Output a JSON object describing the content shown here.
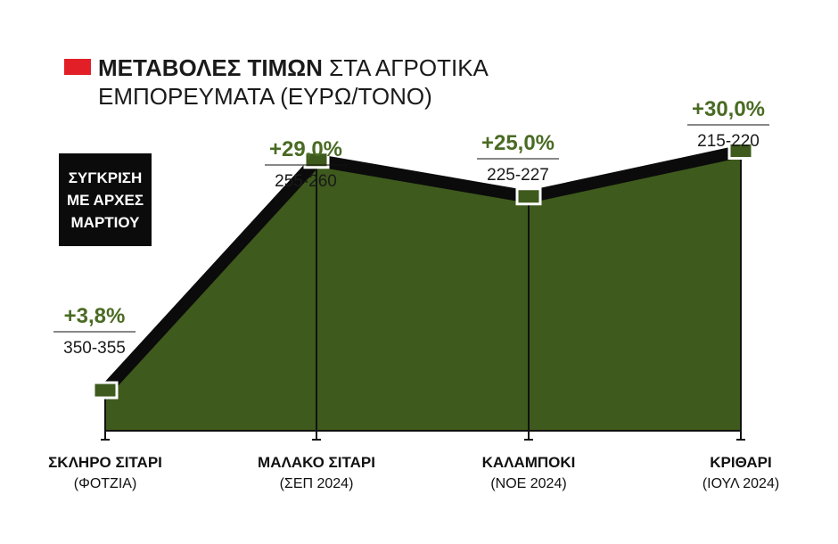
{
  "title": {
    "bold": "ΜΕΤΑΒΟΛΕΣ ΤΙΜΩΝ",
    "rest": " ΣΤΑ ΑΓΡΟΤΙΚΑ",
    "line2": "ΕΜΠΟΡΕΥΜΑΤΑ (ΕΥΡΩ/ΤΟΝΟ)"
  },
  "badge": [
    "ΣΥΓΚΡΙΣΗ",
    "ΜΕ ΑΡΧΕΣ",
    "ΜΑΡΤΙΟΥ"
  ],
  "colors": {
    "accent": "#e21f26",
    "fill": "#3e5a1c",
    "positive": "#4a6b23",
    "line": "#0b0b0b"
  },
  "chart_data": {
    "type": "area",
    "categories": [
      "ΣΚΛΗΡΟ ΣΙΤΑΡΙ",
      "ΜΑΛΑΚΟ ΣΙΤΑΡΙ",
      "ΚΑΛΑΜΠΟΚΙ",
      "ΚΡΙΘΑΡΙ"
    ],
    "subtitles": [
      "(ΦΟΤΖΙΑ)",
      "(ΣΕΠ 2024)",
      "(ΝΟΕ 2024)",
      "(ΙΟΥΛ 2024)"
    ],
    "values": [
      3.8,
      29.0,
      25.0,
      30.0
    ],
    "value_labels": [
      "+3,8%",
      "+29,0%",
      "+25,0%",
      "+30,0%"
    ],
    "price_ranges": [
      "350-355",
      "255-260",
      "225-227",
      "215-220"
    ],
    "ylim": [
      0,
      32
    ],
    "grid": false
  }
}
